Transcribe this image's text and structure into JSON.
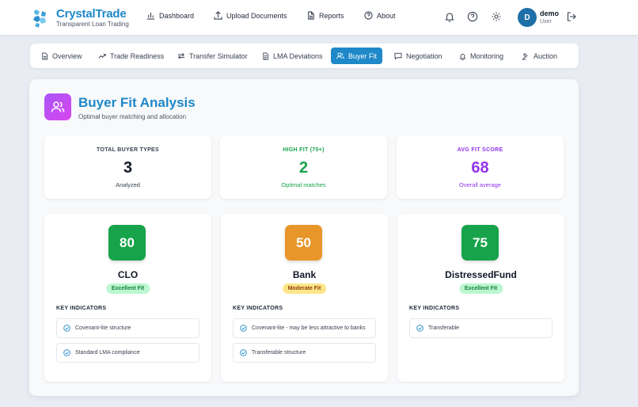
{
  "brand": {
    "name": "CrystalTrade",
    "tagline": "Transparent Loan Trading"
  },
  "nav": [
    {
      "label": "Dashboard",
      "icon": "bar-chart-icon"
    },
    {
      "label": "Upload Documents",
      "icon": "upload-icon"
    },
    {
      "label": "Reports",
      "icon": "file-icon"
    },
    {
      "label": "About",
      "icon": "help-circle-icon"
    }
  ],
  "header_icons": [
    "bell-icon",
    "help-icon",
    "gear-icon",
    "logout-icon"
  ],
  "user": {
    "initial": "D",
    "name": "demo",
    "role": "User"
  },
  "tabs": [
    {
      "label": "Overview",
      "icon": "document-icon",
      "active": false
    },
    {
      "label": "Trade Readiness",
      "icon": "trending-up-icon",
      "active": false
    },
    {
      "label": "Transfer Simulator",
      "icon": "arrows-icon",
      "active": false
    },
    {
      "label": "LMA Deviations",
      "icon": "clipboard-icon",
      "active": false
    },
    {
      "label": "Buyer Fit",
      "icon": "users-icon",
      "active": true
    },
    {
      "label": "Negotiation",
      "icon": "message-icon",
      "active": false
    },
    {
      "label": "Monitoring",
      "icon": "bell-icon",
      "active": false
    },
    {
      "label": "Auction",
      "icon": "gavel-icon",
      "active": false
    }
  ],
  "page": {
    "title": "Buyer Fit Analysis",
    "subtitle": "Optimal buyer matching and allocation"
  },
  "stats": [
    {
      "label": "TOTAL BUYER TYPES",
      "value": "3",
      "note": "Analyzed",
      "color": "#111827",
      "label_color": "#374151"
    },
    {
      "label": "HIGH FIT (70+)",
      "value": "2",
      "note": "Optimal matches",
      "color": "#16a34a",
      "label_color": "#16a34a"
    },
    {
      "label": "AVG FIT SCORE",
      "value": "68",
      "note": "Overall average",
      "color": "#9333ea",
      "label_color": "#9333ea"
    }
  ],
  "key_indicators_label": "KEY INDICATORS",
  "buyers": [
    {
      "score": "80",
      "name": "CLO",
      "fit": "Excellent Fit",
      "score_color": "#16a34a",
      "indicators": [
        "Covenant-lite structure",
        "Standard LMA compliance"
      ]
    },
    {
      "score": "50",
      "name": "Bank",
      "fit": "Moderate Fit",
      "score_color": "#e8962a",
      "indicators": [
        "Covenant-lite - may be less attractive to banks",
        "Transferable structure"
      ]
    },
    {
      "score": "75",
      "name": "DistressedFund",
      "fit": "Excellent Fit",
      "score_color": "#16a34a",
      "indicators": [
        "Transferable"
      ]
    }
  ],
  "colors": {
    "accent": "#1e88c8",
    "excellent_bg": "#bbf7d0",
    "excellent_fg": "#15803d",
    "moderate_bg": "#fde68a",
    "moderate_fg": "#92400e"
  }
}
